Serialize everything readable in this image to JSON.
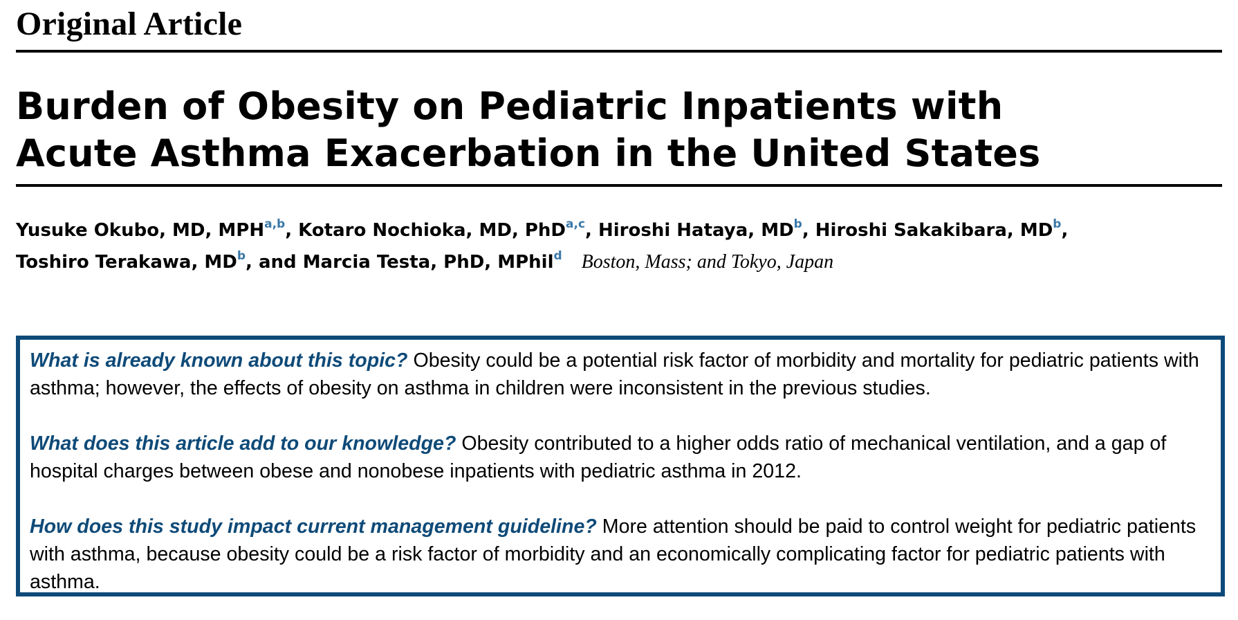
{
  "header": {
    "section_label": "Original Article"
  },
  "article": {
    "title_line1": "Burden of Obesity on Pediatric Inpatients with",
    "title_line2": "Acute Asthma Exacerbation in the United States"
  },
  "authors": [
    {
      "name": "Yusuke Okubo, MD, MPH",
      "affil": "a,b",
      "sep": ", "
    },
    {
      "name": "Kotaro Nochioka, MD, PhD",
      "affil": "a,c",
      "sep": ", "
    },
    {
      "name": "Hiroshi Hataya, MD",
      "affil": "b",
      "sep": ", "
    },
    {
      "name": "Hiroshi Sakakibara, MD",
      "affil": "b",
      "sep": ","
    },
    {
      "name": "Toshiro Terakawa, MD",
      "affil": "b",
      "sep": ", and "
    },
    {
      "name": "Marcia Testa, PhD, MPhil",
      "affil": "d",
      "sep": ""
    }
  ],
  "location": "Boston, Mass; and Tokyo, Japan",
  "summary": [
    {
      "question": "What is already known about this topic?",
      "answer": "Obesity could be a potential risk factor of morbidity and mortality for pediatric patients with asthma; however, the effects of obesity on asthma in children were inconsistent in the previous studies."
    },
    {
      "question": "What does this article add to our knowledge?",
      "answer": "Obesity contributed to a higher odds ratio of mechanical ventilation, and a gap of hospital charges between obese and nonobese inpatients with pediatric asthma in 2012."
    },
    {
      "question": "How does this study impact current management guideline?",
      "answer": "More attention should be paid to control weight for pediatric patients with asthma, because obesity could be a risk factor of morbidity and an economically complicating factor for pediatric patients with asthma."
    }
  ],
  "colors": {
    "accent": "#0e4a78",
    "superscript": "#3a78a8"
  }
}
